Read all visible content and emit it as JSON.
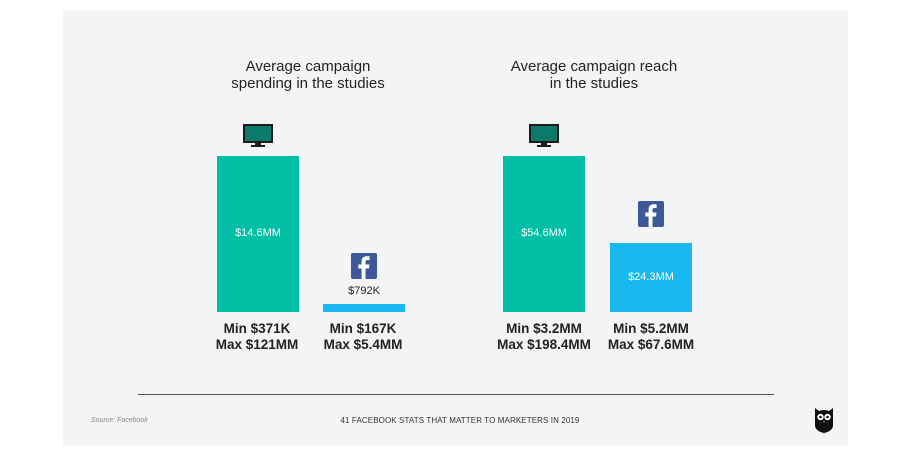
{
  "colors": {
    "tv": "#00bfa5",
    "facebook_bar": "#17b7f0",
    "facebook_blue": "#3b5998",
    "background_card": "#f3f4f6"
  },
  "chart_data": [
    {
      "type": "bar",
      "title_lines": [
        "Average campaign",
        "spending in the studies"
      ],
      "categories": [
        "TV",
        "Facebook"
      ],
      "icons": [
        "tv-icon",
        "facebook-icon"
      ],
      "values": [
        14.6,
        0.792
      ],
      "value_labels": [
        "$14.6MM",
        "$792K"
      ],
      "ranges": [
        {
          "min": "Min $371K",
          "max": "Max $121MM"
        },
        {
          "min": "Min $167K",
          "max": "Max $5.4MM"
        }
      ]
    },
    {
      "type": "bar",
      "title_lines": [
        "Average campaign reach",
        "in the studies"
      ],
      "categories": [
        "TV",
        "Facebook"
      ],
      "icons": [
        "tv-icon",
        "facebook-icon"
      ],
      "values": [
        54.6,
        24.3
      ],
      "value_labels": [
        "$54.6MM",
        "$24.3MM"
      ],
      "ranges": [
        {
          "min": "Min $3.2MM",
          "max": "Max $198.4MM"
        },
        {
          "min": "Min $5.2MM",
          "max": "Max $67.6MM"
        }
      ]
    }
  ],
  "footer": {
    "source": "Source: Facebook",
    "title": "41 FACEBOOK STATS THAT MATTER TO MARKETERS IN 2019",
    "logo": "hootsuite-owl-logo"
  }
}
